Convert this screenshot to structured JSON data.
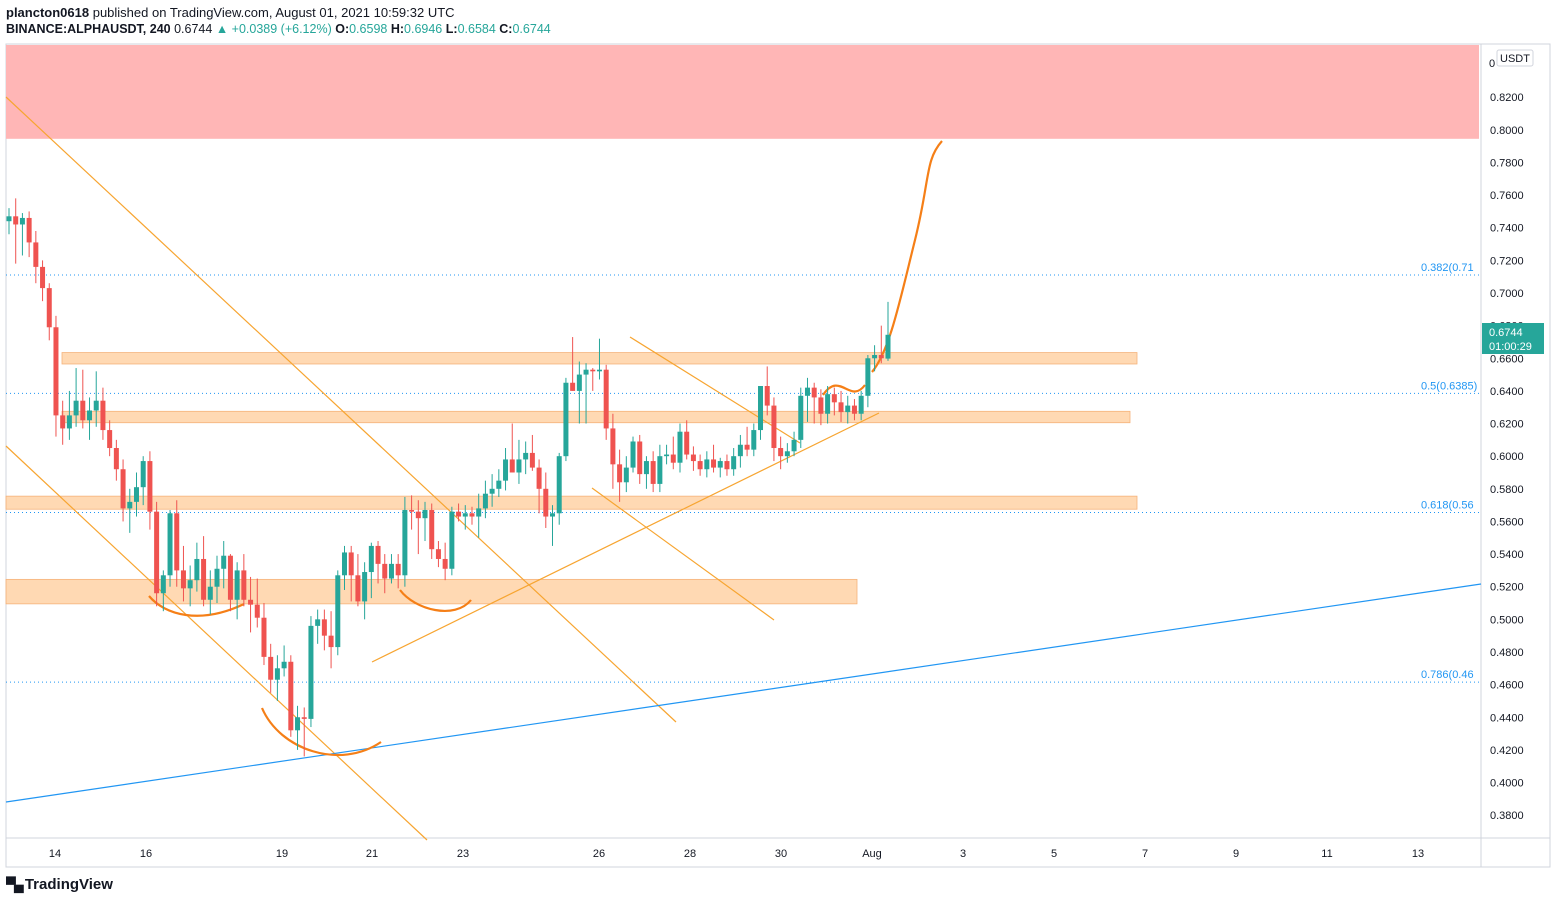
{
  "header": {
    "publisher": "plancton0618",
    "published_text": "published on TradingView.com, August 01, 2021 10:59:32 UTC",
    "symbol": "BINANCE:ALPHAUSDT, 240",
    "last": "0.6744",
    "change": "▲ +0.0389 (+6.12%)",
    "o_label": "O:",
    "o_val": "0.6598",
    "h_label": "H:",
    "h_val": "0.6946",
    "l_label": "L:",
    "l_val": "0.6584",
    "c_label": "C:",
    "c_val": "0.6744"
  },
  "price_axis": {
    "currency": "USDT",
    "top_tick_partial": "0",
    "current_price": "0.6744",
    "countdown": "01:00:29"
  },
  "footer": {
    "brand": "TradingView"
  },
  "colors": {
    "up": "#26a69a",
    "down": "#ef5350",
    "zone": "#ffcc99",
    "resistance": "#ffb6b6",
    "trend": "#f7a531",
    "projection": "#f57f17",
    "support_line": "#2196f3",
    "fib": "#2196f3"
  },
  "chart_data": {
    "type": "candlestick",
    "title": "",
    "xlabel": "",
    "ylabel": "",
    "ylim": [
      0.366,
      0.8526
    ],
    "grid": false,
    "y_ticks": [
      "0.8200",
      "0.8000",
      "0.7800",
      "0.7600",
      "0.7400",
      "0.7200",
      "0.7000",
      "0.6800",
      "0.6600",
      "0.6400",
      "0.6200",
      "0.6000",
      "0.5800",
      "0.5600",
      "0.5400",
      "0.5200",
      "0.5000",
      "0.4800",
      "0.4600",
      "0.4400",
      "0.4200",
      "0.4000",
      "0.3800"
    ],
    "x_ticks": [
      "14",
      "16",
      "19",
      "21",
      "23",
      "26",
      "28",
      "30",
      "Aug",
      "3",
      "5",
      "7",
      "9",
      "11",
      "13"
    ],
    "fib_levels": [
      {
        "label": "0.382(0.71",
        "value": 0.711
      },
      {
        "label": "0.5(0.6385)",
        "value": 0.6385
      },
      {
        "label": "0.618(0.56",
        "value": 0.5655
      },
      {
        "label": "0.786(0.46",
        "value": 0.4615
      }
    ],
    "resistance_zone": [
      0.7945,
      0.852
    ],
    "support_zones": [
      [
        0.6565,
        0.6635
      ],
      [
        0.6205,
        0.6275
      ],
      [
        0.5675,
        0.5755
      ],
      [
        0.5095,
        0.5245
      ]
    ],
    "candles": [
      [
        0.744,
        0.752,
        0.736,
        0.747
      ],
      [
        0.747,
        0.758,
        0.718,
        0.742
      ],
      [
        0.742,
        0.749,
        0.723,
        0.746
      ],
      [
        0.746,
        0.75,
        0.722,
        0.731
      ],
      [
        0.731,
        0.738,
        0.706,
        0.716
      ],
      [
        0.716,
        0.72,
        0.695,
        0.703
      ],
      [
        0.703,
        0.706,
        0.671,
        0.679
      ],
      [
        0.679,
        0.686,
        0.612,
        0.625
      ],
      [
        0.625,
        0.634,
        0.607,
        0.617
      ],
      [
        0.617,
        0.64,
        0.61,
        0.625
      ],
      [
        0.625,
        0.654,
        0.618,
        0.634
      ],
      [
        0.634,
        0.653,
        0.617,
        0.622
      ],
      [
        0.622,
        0.636,
        0.61,
        0.628
      ],
      [
        0.628,
        0.652,
        0.618,
        0.634
      ],
      [
        0.634,
        0.642,
        0.61,
        0.616
      ],
      [
        0.616,
        0.622,
        0.6,
        0.605
      ],
      [
        0.605,
        0.61,
        0.585,
        0.592
      ],
      [
        0.592,
        0.598,
        0.56,
        0.568
      ],
      [
        0.568,
        0.58,
        0.553,
        0.572
      ],
      [
        0.572,
        0.59,
        0.563,
        0.581
      ],
      [
        0.581,
        0.6,
        0.57,
        0.597
      ],
      [
        0.597,
        0.603,
        0.555,
        0.566
      ],
      [
        0.566,
        0.572,
        0.508,
        0.516
      ],
      [
        0.516,
        0.53,
        0.505,
        0.527
      ],
      [
        0.527,
        0.567,
        0.52,
        0.565
      ],
      [
        0.565,
        0.573,
        0.52,
        0.53
      ],
      [
        0.53,
        0.545,
        0.511,
        0.519
      ],
      [
        0.519,
        0.533,
        0.508,
        0.524
      ],
      [
        0.524,
        0.547,
        0.517,
        0.537
      ],
      [
        0.537,
        0.551,
        0.508,
        0.512
      ],
      [
        0.512,
        0.53,
        0.503,
        0.52
      ],
      [
        0.52,
        0.539,
        0.51,
        0.531
      ],
      [
        0.531,
        0.548,
        0.519,
        0.539
      ],
      [
        0.539,
        0.54,
        0.505,
        0.512
      ],
      [
        0.512,
        0.535,
        0.5,
        0.53
      ],
      [
        0.53,
        0.54,
        0.508,
        0.512
      ],
      [
        0.512,
        0.526,
        0.492,
        0.509
      ],
      [
        0.509,
        0.525,
        0.495,
        0.501
      ],
      [
        0.501,
        0.51,
        0.472,
        0.477
      ],
      [
        0.477,
        0.485,
        0.455,
        0.463
      ],
      [
        0.463,
        0.478,
        0.45,
        0.47
      ],
      [
        0.47,
        0.484,
        0.465,
        0.474
      ],
      [
        0.474,
        0.478,
        0.428,
        0.432
      ],
      [
        0.432,
        0.447,
        0.42,
        0.44
      ],
      [
        0.44,
        0.446,
        0.416,
        0.439
      ],
      [
        0.439,
        0.502,
        0.434,
        0.496
      ],
      [
        0.496,
        0.506,
        0.485,
        0.5
      ],
      [
        0.5,
        0.506,
        0.481,
        0.49
      ],
      [
        0.49,
        0.505,
        0.47,
        0.483
      ],
      [
        0.483,
        0.53,
        0.478,
        0.527
      ],
      [
        0.527,
        0.545,
        0.518,
        0.541
      ],
      [
        0.541,
        0.545,
        0.511,
        0.527
      ],
      [
        0.527,
        0.54,
        0.508,
        0.511
      ],
      [
        0.511,
        0.535,
        0.5,
        0.529
      ],
      [
        0.529,
        0.547,
        0.513,
        0.545
      ],
      [
        0.545,
        0.548,
        0.522,
        0.534
      ],
      [
        0.534,
        0.54,
        0.516,
        0.525
      ],
      [
        0.525,
        0.54,
        0.522,
        0.534
      ],
      [
        0.534,
        0.54,
        0.519,
        0.527
      ],
      [
        0.527,
        0.575,
        0.52,
        0.567
      ],
      [
        0.567,
        0.576,
        0.555,
        0.566
      ],
      [
        0.566,
        0.573,
        0.54,
        0.562
      ],
      [
        0.562,
        0.572,
        0.548,
        0.567
      ],
      [
        0.567,
        0.571,
        0.537,
        0.543
      ],
      [
        0.543,
        0.548,
        0.532,
        0.537
      ],
      [
        0.537,
        0.547,
        0.524,
        0.531
      ],
      [
        0.531,
        0.569,
        0.527,
        0.566
      ],
      [
        0.566,
        0.571,
        0.56,
        0.563
      ],
      [
        0.563,
        0.57,
        0.555,
        0.565
      ],
      [
        0.565,
        0.569,
        0.558,
        0.563
      ],
      [
        0.563,
        0.577,
        0.55,
        0.568
      ],
      [
        0.568,
        0.585,
        0.562,
        0.577
      ],
      [
        0.577,
        0.589,
        0.569,
        0.58
      ],
      [
        0.58,
        0.592,
        0.575,
        0.585
      ],
      [
        0.585,
        0.605,
        0.579,
        0.598
      ],
      [
        0.598,
        0.62,
        0.59,
        0.59
      ],
      [
        0.59,
        0.61,
        0.583,
        0.598
      ],
      [
        0.598,
        0.609,
        0.589,
        0.602
      ],
      [
        0.602,
        0.613,
        0.591,
        0.593
      ],
      [
        0.593,
        0.598,
        0.565,
        0.58
      ],
      [
        0.58,
        0.59,
        0.556,
        0.563
      ],
      [
        0.563,
        0.57,
        0.545,
        0.565
      ],
      [
        0.565,
        0.602,
        0.558,
        0.6
      ],
      [
        0.6,
        0.648,
        0.597,
        0.645
      ],
      [
        0.645,
        0.673,
        0.64,
        0.64
      ],
      [
        0.64,
        0.658,
        0.62,
        0.65
      ],
      [
        0.65,
        0.657,
        0.62,
        0.653
      ],
      [
        0.653,
        0.654,
        0.64,
        0.652
      ],
      [
        0.652,
        0.672,
        0.647,
        0.653
      ],
      [
        0.653,
        0.656,
        0.61,
        0.617
      ],
      [
        0.617,
        0.626,
        0.58,
        0.595
      ],
      [
        0.595,
        0.604,
        0.572,
        0.584
      ],
      [
        0.584,
        0.6,
        0.578,
        0.593
      ],
      [
        0.593,
        0.612,
        0.59,
        0.609
      ],
      [
        0.609,
        0.613,
        0.583,
        0.589
      ],
      [
        0.589,
        0.6,
        0.58,
        0.597
      ],
      [
        0.597,
        0.603,
        0.578,
        0.583
      ],
      [
        0.583,
        0.607,
        0.578,
        0.6
      ],
      [
        0.6,
        0.607,
        0.595,
        0.601
      ],
      [
        0.601,
        0.612,
        0.592,
        0.596
      ],
      [
        0.596,
        0.62,
        0.59,
        0.615
      ],
      [
        0.615,
        0.622,
        0.598,
        0.601
      ],
      [
        0.601,
        0.606,
        0.591,
        0.597
      ],
      [
        0.597,
        0.601,
        0.588,
        0.592
      ],
      [
        0.592,
        0.603,
        0.587,
        0.598
      ],
      [
        0.598,
        0.607,
        0.59,
        0.593
      ],
      [
        0.593,
        0.599,
        0.587,
        0.597
      ],
      [
        0.597,
        0.601,
        0.588,
        0.592
      ],
      [
        0.592,
        0.605,
        0.588,
        0.6
      ],
      [
        0.6,
        0.613,
        0.593,
        0.607
      ],
      [
        0.607,
        0.618,
        0.6,
        0.604
      ],
      [
        0.604,
        0.62,
        0.6,
        0.616
      ],
      [
        0.616,
        0.64,
        0.61,
        0.643
      ],
      [
        0.643,
        0.655,
        0.625,
        0.631
      ],
      [
        0.631,
        0.636,
        0.597,
        0.605
      ],
      [
        0.605,
        0.612,
        0.592,
        0.6
      ],
      [
        0.6,
        0.608,
        0.596,
        0.603
      ],
      [
        0.603,
        0.615,
        0.6,
        0.61
      ],
      [
        0.61,
        0.642,
        0.605,
        0.637
      ],
      [
        0.637,
        0.648,
        0.621,
        0.642
      ],
      [
        0.642,
        0.645,
        0.62,
        0.636
      ],
      [
        0.636,
        0.641,
        0.619,
        0.626
      ],
      [
        0.626,
        0.643,
        0.62,
        0.638
      ],
      [
        0.638,
        0.642,
        0.625,
        0.633
      ],
      [
        0.633,
        0.64,
        0.621,
        0.627
      ],
      [
        0.627,
        0.637,
        0.62,
        0.631
      ],
      [
        0.631,
        0.635,
        0.622,
        0.626
      ],
      [
        0.626,
        0.64,
        0.622,
        0.637
      ],
      [
        0.637,
        0.662,
        0.63,
        0.66
      ],
      [
        0.66,
        0.668,
        0.652,
        0.662
      ],
      [
        0.662,
        0.68,
        0.657,
        0.66
      ],
      [
        0.6598,
        0.6946,
        0.6584,
        0.6744
      ]
    ]
  }
}
